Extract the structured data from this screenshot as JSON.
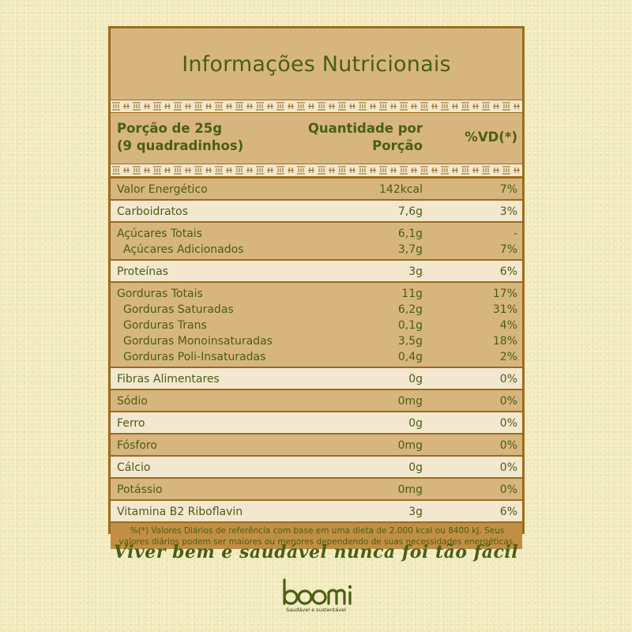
{
  "title": "Informações Nutricionais",
  "header": {
    "portion_line1": "Porção de 25g",
    "portion_line2": "(9 quadradinhos)",
    "qty_line1": "Quantidade por",
    "qty_line2": "Porção",
    "vd": "%VD(*)"
  },
  "groups": [
    {
      "shade": "dark",
      "lines": [
        {
          "name": "Valor Energético",
          "qty": "142kcal",
          "vd": "7%",
          "level": 0
        }
      ]
    },
    {
      "shade": "light",
      "lines": [
        {
          "name": "Carboidratos",
          "qty": "7,6g",
          "vd": "3%",
          "level": 0
        }
      ]
    },
    {
      "shade": "dark",
      "lines": [
        {
          "name": "Açúcares Totais",
          "qty": "6,1g",
          "vd": "-",
          "level": 0
        },
        {
          "name": "Açúcares Adicionados",
          "qty": "3,7g",
          "vd": "7%",
          "level": 1
        }
      ]
    },
    {
      "shade": "light",
      "lines": [
        {
          "name": "Proteínas",
          "qty": "3g",
          "vd": "6%",
          "level": 0
        }
      ]
    },
    {
      "shade": "dark",
      "lines": [
        {
          "name": "Gorduras Totais",
          "qty": "11g",
          "vd": "17%",
          "level": 0
        },
        {
          "name": "Gorduras Saturadas",
          "qty": "6,2g",
          "vd": "31%",
          "level": 1
        },
        {
          "name": "Gorduras Trans",
          "qty": "0,1g",
          "vd": "4%",
          "level": 1
        },
        {
          "name": "Gorduras Monoinsaturadas",
          "qty": "3,5g",
          "vd": "18%",
          "level": 1
        },
        {
          "name": "Gorduras Poli-Insaturadas",
          "qty": "0,4g",
          "vd": "2%",
          "level": 1
        }
      ]
    },
    {
      "shade": "light",
      "lines": [
        {
          "name": "Fibras Alimentares",
          "qty": "0g",
          "vd": "0%",
          "level": 0
        }
      ]
    },
    {
      "shade": "dark",
      "lines": [
        {
          "name": "Sódio",
          "qty": "0mg",
          "vd": "0%",
          "level": 0
        }
      ]
    },
    {
      "shade": "light",
      "lines": [
        {
          "name": "Ferro",
          "qty": "0g",
          "vd": "0%",
          "level": 0
        }
      ]
    },
    {
      "shade": "dark",
      "lines": [
        {
          "name": "Fósforo",
          "qty": "0mg",
          "vd": "0%",
          "level": 0
        }
      ]
    },
    {
      "shade": "light",
      "lines": [
        {
          "name": "Cálcio",
          "qty": "0g",
          "vd": "0%",
          "level": 0
        }
      ]
    },
    {
      "shade": "dark",
      "lines": [
        {
          "name": "Potássio",
          "qty": "0mg",
          "vd": "0%",
          "level": 0
        }
      ]
    },
    {
      "shade": "light",
      "lines": [
        {
          "name": "Vitamina B2 Riboflavin",
          "qty": "3g",
          "vd": "6%",
          "level": 0
        }
      ]
    }
  ],
  "footnote": "%(*) Valores Diários de referência com base em uma dieta de 2.000 kcal ou 8400 kJ. Seus valores diários podem ser maiores ou menores dependendo de suas necessidades energéticas.",
  "tagline": "Viver bem e saudável nunca foi tão fácil",
  "brand": {
    "name": "boomi",
    "slogan": "Saudável e sustentável"
  },
  "colors": {
    "text_green": "#4a5e14",
    "panel_tan": "#d7b57e",
    "row_cream": "#f3e7d0",
    "border_brown": "#9b6b1c",
    "footnote_bg": "#c08f44",
    "page_bg": "#f4edc2"
  }
}
